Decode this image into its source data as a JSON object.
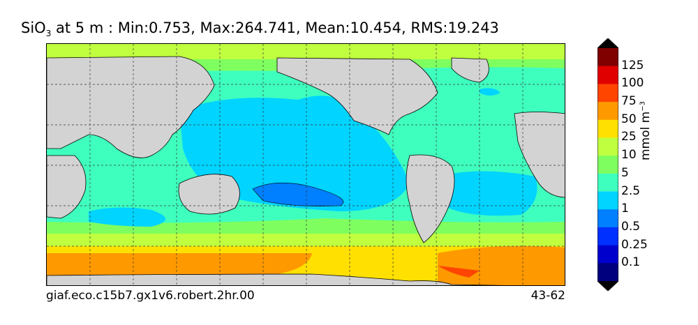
{
  "title": {
    "variable": "SiO",
    "subscript": "3",
    "rest": " at 5 m : Min:0.753, Max:264.741, Mean:10.454, RMS:19.243"
  },
  "footer": {
    "run_name": "giaf.eco.c15b7.gx1v6.robert.2hr.00",
    "years": "43-62"
  },
  "colorbar": {
    "units": "mmol m",
    "units_exponent": "−3",
    "levels": [
      "125",
      "100",
      "75",
      "50",
      "25",
      "10",
      "5",
      "2.5",
      "1",
      "0.5",
      "0.25",
      "0.1"
    ],
    "colors": [
      "#800000",
      "#e00000",
      "#ff4500",
      "#ff9900",
      "#ffe000",
      "#bfff3f",
      "#7fff5f",
      "#3fffbf",
      "#00d4ff",
      "#007fff",
      "#0030ff",
      "#0000cd",
      "#00007f"
    ],
    "extend": "both"
  },
  "map": {
    "land_color": "#d3d3d3",
    "projection": "cylindrical",
    "gridlines": "dashed"
  }
}
